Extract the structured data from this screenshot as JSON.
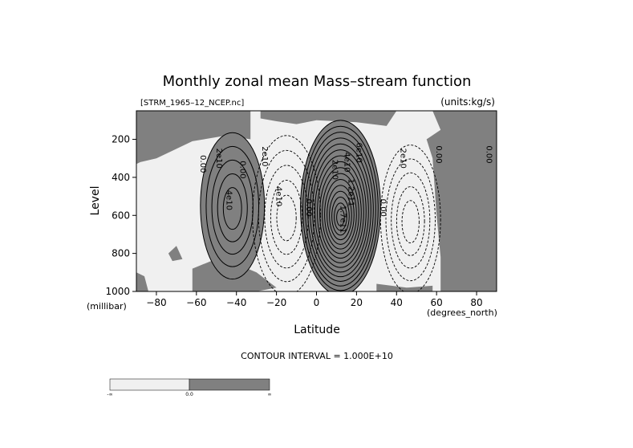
{
  "chart_data": {
    "type": "contour",
    "title": "Monthly zonal mean Mass–stream function",
    "file_label": "[STRM_1965–12_NCEP.nc]",
    "units_label": "(units:kg/s)",
    "xlabel": "Latitude",
    "ylabel": "Level",
    "x_unit": "(degrees_north)",
    "y_unit": "(millibar)",
    "xlim": [
      -90,
      90
    ],
    "ylim": [
      1000,
      50
    ],
    "y_inverted": true,
    "x_ticks": [
      -80,
      -60,
      -40,
      -20,
      0,
      20,
      40,
      60,
      80
    ],
    "x_tick_labels": [
      "−80",
      "−60",
      "−40",
      "−20",
      "0",
      "20",
      "40",
      "60",
      "80"
    ],
    "y_ticks": [
      200,
      400,
      600,
      800,
      1000
    ],
    "y_tick_labels": [
      "200",
      "400",
      "600",
      "800",
      "1000"
    ],
    "contour_interval_text": "CONTOUR INTERVAL = 1.000E+10",
    "contour_interval": 10000000000.0,
    "fill_colors": {
      "negative": "#f0f0f0",
      "positive": "#808080"
    },
    "colorbar": {
      "labels": [
        "-∞",
        "0.0",
        "∞"
      ],
      "colors": [
        "#f0f0f0",
        "#808080"
      ]
    },
    "cells": [
      {
        "sign": "positive",
        "center": [
          -42,
          550
        ],
        "extremum": 50000000000.0,
        "lat_range": [
          -60,
          -28
        ],
        "p_range": [
          180,
          950
        ]
      },
      {
        "sign": "negative",
        "center": [
          -15,
          600
        ],
        "extremum": -50000000000.0,
        "lat_range": [
          -34,
          0
        ],
        "p_range": [
          120,
          960
        ]
      },
      {
        "sign": "positive",
        "center": [
          12,
          560
        ],
        "extremum": 190000000000.0,
        "lat_range": [
          -5,
          35
        ],
        "p_range": [
          80,
          1000
        ]
      },
      {
        "sign": "negative",
        "center": [
          47,
          620
        ],
        "extremum": -50000000000.0,
        "lat_range": [
          32,
          62
        ],
        "p_range": [
          180,
          960
        ]
      }
    ],
    "contour_labels": [
      "0.00",
      "2e10",
      "4e10",
      "0.00",
      "2e10",
      "4e10",
      "0.00",
      "2e10",
      "4e10",
      "6e10",
      "1.2e11",
      "1.7e11",
      "0.00",
      "2e10",
      "0.00",
      "0.00"
    ]
  }
}
